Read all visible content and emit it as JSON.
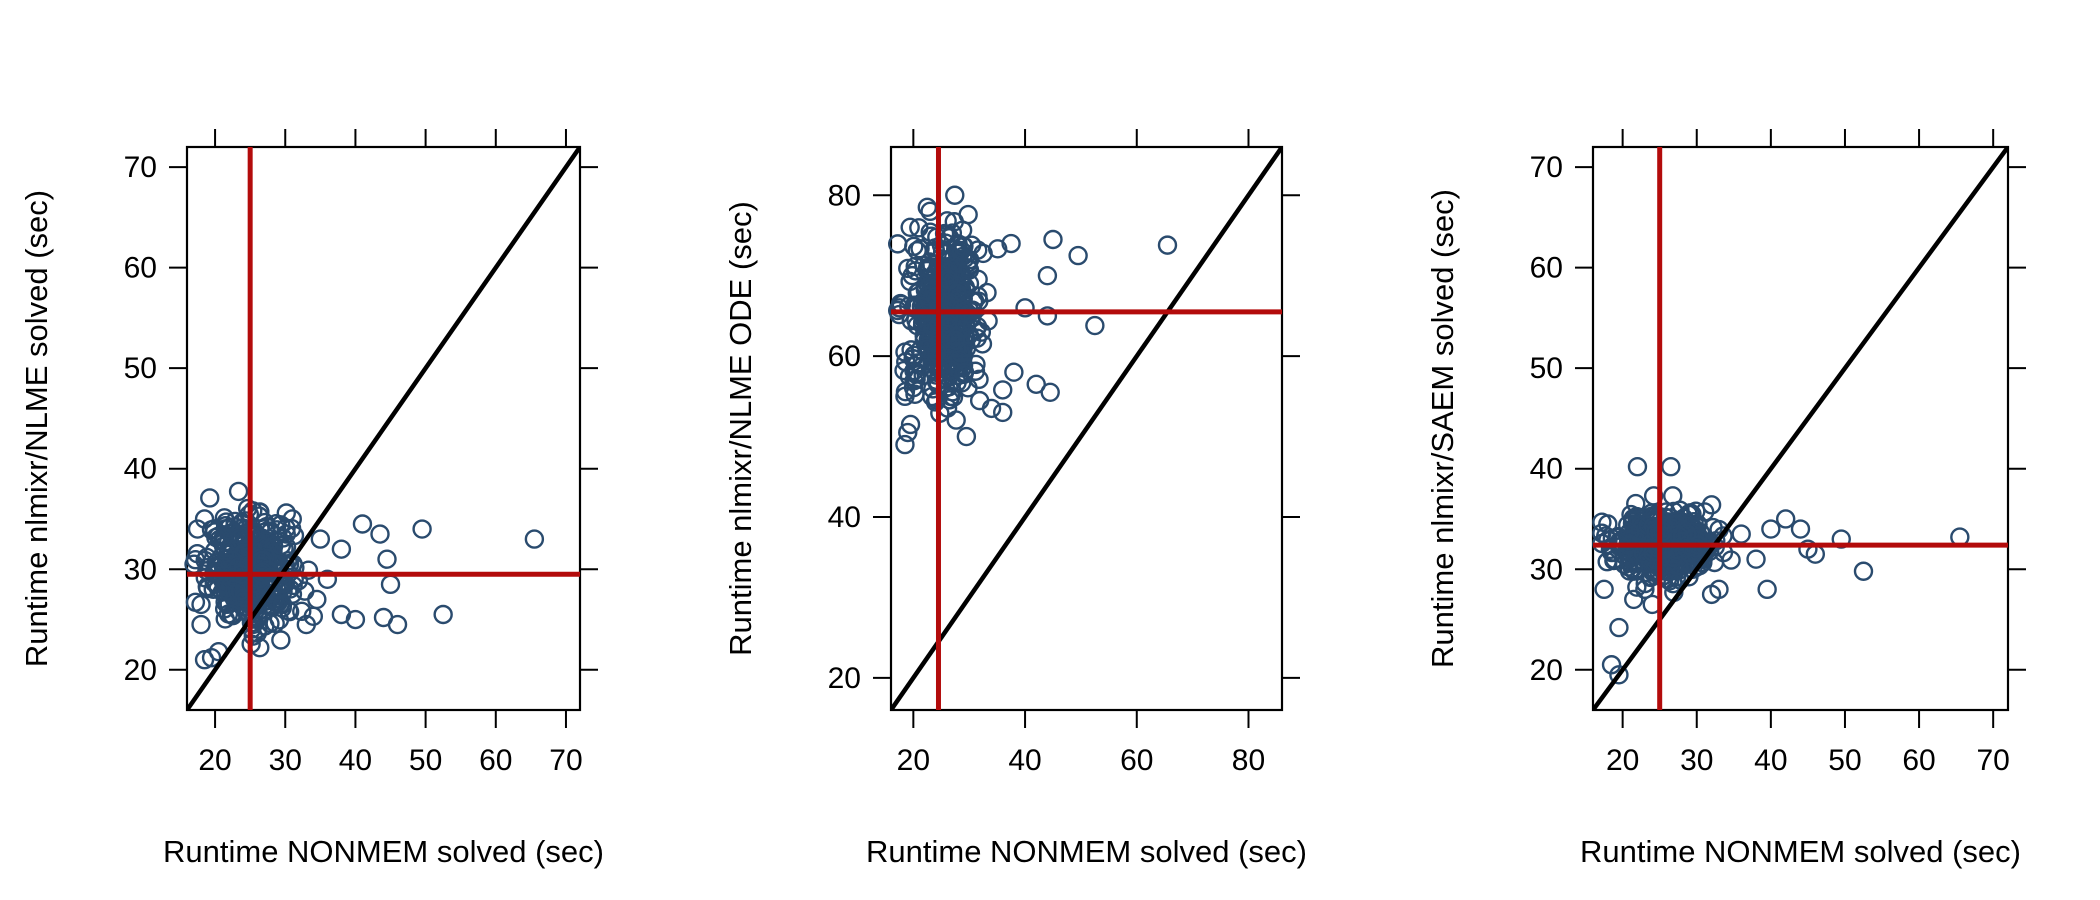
{
  "colors": {
    "points": "#2a4b6e",
    "median_lines": "#b30b0b",
    "identity_line": "#000000",
    "axes": "#000000"
  },
  "chart_data": [
    {
      "type": "scatter",
      "xlabel": "Runtime NONMEM solved (sec)",
      "ylabel": "Runtime nlmixr/NLME solved (sec)",
      "xlim": [
        16,
        72
      ],
      "ylim": [
        16,
        72
      ],
      "xticks": [
        20,
        30,
        40,
        50,
        60,
        70
      ],
      "yticks": [
        20,
        30,
        40,
        50,
        60,
        70
      ],
      "identity_line": true,
      "vline_x": 25.0,
      "hline_y": 29.5,
      "cluster": {
        "cx": 25,
        "cy": 30,
        "sx": 3.0,
        "sy": 2.6,
        "n": 380
      },
      "outliers": [
        [
          65.5,
          33
        ],
        [
          52.5,
          25.5
        ],
        [
          49.5,
          34
        ],
        [
          46,
          24.5
        ],
        [
          45,
          28.5
        ],
        [
          44,
          25.2
        ],
        [
          44.5,
          31
        ],
        [
          43.5,
          33.5
        ],
        [
          41,
          34.5
        ],
        [
          40,
          25
        ],
        [
          38,
          25.5
        ],
        [
          38,
          32
        ],
        [
          36,
          29
        ],
        [
          35,
          33
        ],
        [
          34.5,
          27
        ],
        [
          33,
          24.5
        ],
        [
          31,
          35
        ],
        [
          18.5,
          21
        ],
        [
          19.5,
          21.2
        ],
        [
          20.5,
          21.8
        ],
        [
          17.5,
          34
        ],
        [
          18.5,
          35
        ],
        [
          17,
          30.5
        ],
        [
          18,
          26.5
        ],
        [
          18,
          24.5
        ]
      ]
    },
    {
      "type": "scatter",
      "xlabel": "Runtime NONMEM solved (sec)",
      "ylabel": "Runtime nlmixr/NLME ODE (sec)",
      "xlim": [
        16,
        86
      ],
      "ylim": [
        16,
        86
      ],
      "xticks": [
        20,
        40,
        60,
        80
      ],
      "yticks": [
        20,
        40,
        60,
        80
      ],
      "identity_line": true,
      "vline_x": 24.5,
      "hline_y": 65.5,
      "cluster": {
        "cx": 25.5,
        "cy": 65,
        "sx": 3.2,
        "sy": 5.0,
        "n": 450
      },
      "outliers": [
        [
          65.5,
          73.8
        ],
        [
          52.5,
          63.8
        ],
        [
          49.5,
          72.5
        ],
        [
          45,
          74.5
        ],
        [
          44,
          70
        ],
        [
          44.5,
          55.5
        ],
        [
          44,
          65
        ],
        [
          42,
          56.5
        ],
        [
          40,
          66
        ],
        [
          38,
          58
        ],
        [
          36,
          53
        ],
        [
          36,
          55.8
        ],
        [
          37.5,
          74
        ],
        [
          34,
          53.5
        ],
        [
          22.5,
          78.5
        ],
        [
          23,
          78
        ],
        [
          18.5,
          49
        ],
        [
          19,
          50.5
        ],
        [
          19.5,
          51.5
        ],
        [
          18.5,
          55
        ],
        [
          18.5,
          60.5
        ],
        [
          17.5,
          66
        ]
      ]
    },
    {
      "type": "scatter",
      "xlabel": "Runtime NONMEM solved (sec)",
      "ylabel": "Runtime nlmixr/SAEM solved (sec)",
      "xlim": [
        16,
        72
      ],
      "ylim": [
        16,
        72
      ],
      "xticks": [
        20,
        30,
        40,
        50,
        60,
        70
      ],
      "yticks": [
        20,
        30,
        40,
        50,
        60,
        70
      ],
      "identity_line": true,
      "vline_x": 25.0,
      "hline_y": 32.4,
      "cluster": {
        "cx": 26,
        "cy": 32.5,
        "sx": 3.4,
        "sy": 1.6,
        "n": 420
      },
      "outliers": [
        [
          65.5,
          33.2
        ],
        [
          52.5,
          29.8
        ],
        [
          49.5,
          33
        ],
        [
          46,
          31.5
        ],
        [
          45,
          32
        ],
        [
          44,
          34
        ],
        [
          42,
          35
        ],
        [
          40,
          34
        ],
        [
          39.5,
          28
        ],
        [
          38,
          31
        ],
        [
          36,
          33.5
        ],
        [
          33,
          28
        ],
        [
          32,
          27.5
        ],
        [
          22,
          40.2
        ],
        [
          26.5,
          40.2
        ],
        [
          18.5,
          20.5
        ],
        [
          19.5,
          19.5
        ],
        [
          19.5,
          24.2
        ],
        [
          17.5,
          28
        ],
        [
          18,
          34.5
        ],
        [
          21.5,
          27
        ],
        [
          23,
          28
        ],
        [
          24,
          26.5
        ]
      ]
    }
  ]
}
